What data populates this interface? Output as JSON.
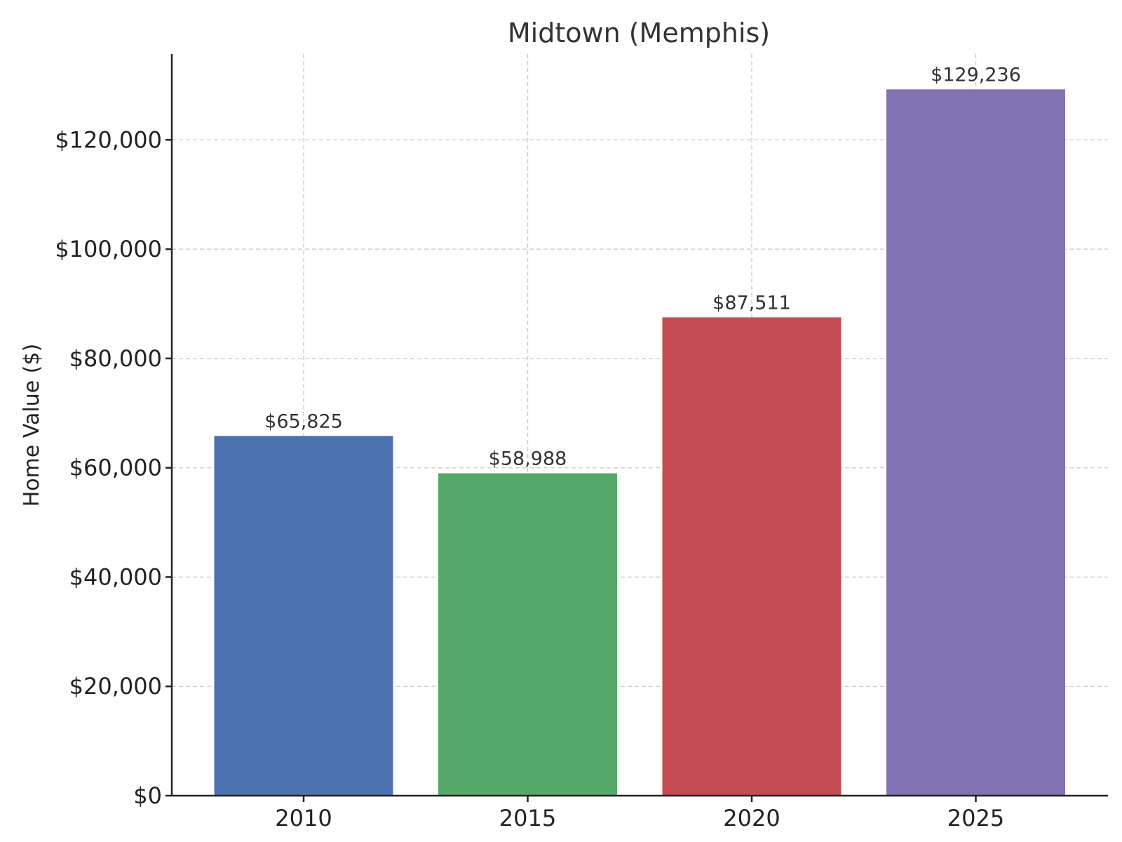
{
  "chart_data": {
    "type": "bar",
    "title": "Midtown (Memphis)",
    "xlabel": "",
    "ylabel": "Home Value ($)",
    "categories": [
      "2010",
      "2015",
      "2020",
      "2025"
    ],
    "values": [
      65825,
      58988,
      87511,
      129236
    ],
    "value_labels": [
      "$65,825",
      "$58,988",
      "$87,511",
      "$129,236"
    ],
    "colors": [
      "#4c72b0",
      "#55a868",
      "#c44e52",
      "#8172b2"
    ],
    "ylim": [
      0,
      135700
    ],
    "yticks": [
      0,
      20000,
      40000,
      60000,
      80000,
      100000,
      120000
    ],
    "ytick_labels": [
      "$0",
      "$20,000",
      "$40,000",
      "$60,000",
      "$80,000",
      "$100,000",
      "$120,000"
    ],
    "grid": true,
    "legend": "none"
  }
}
